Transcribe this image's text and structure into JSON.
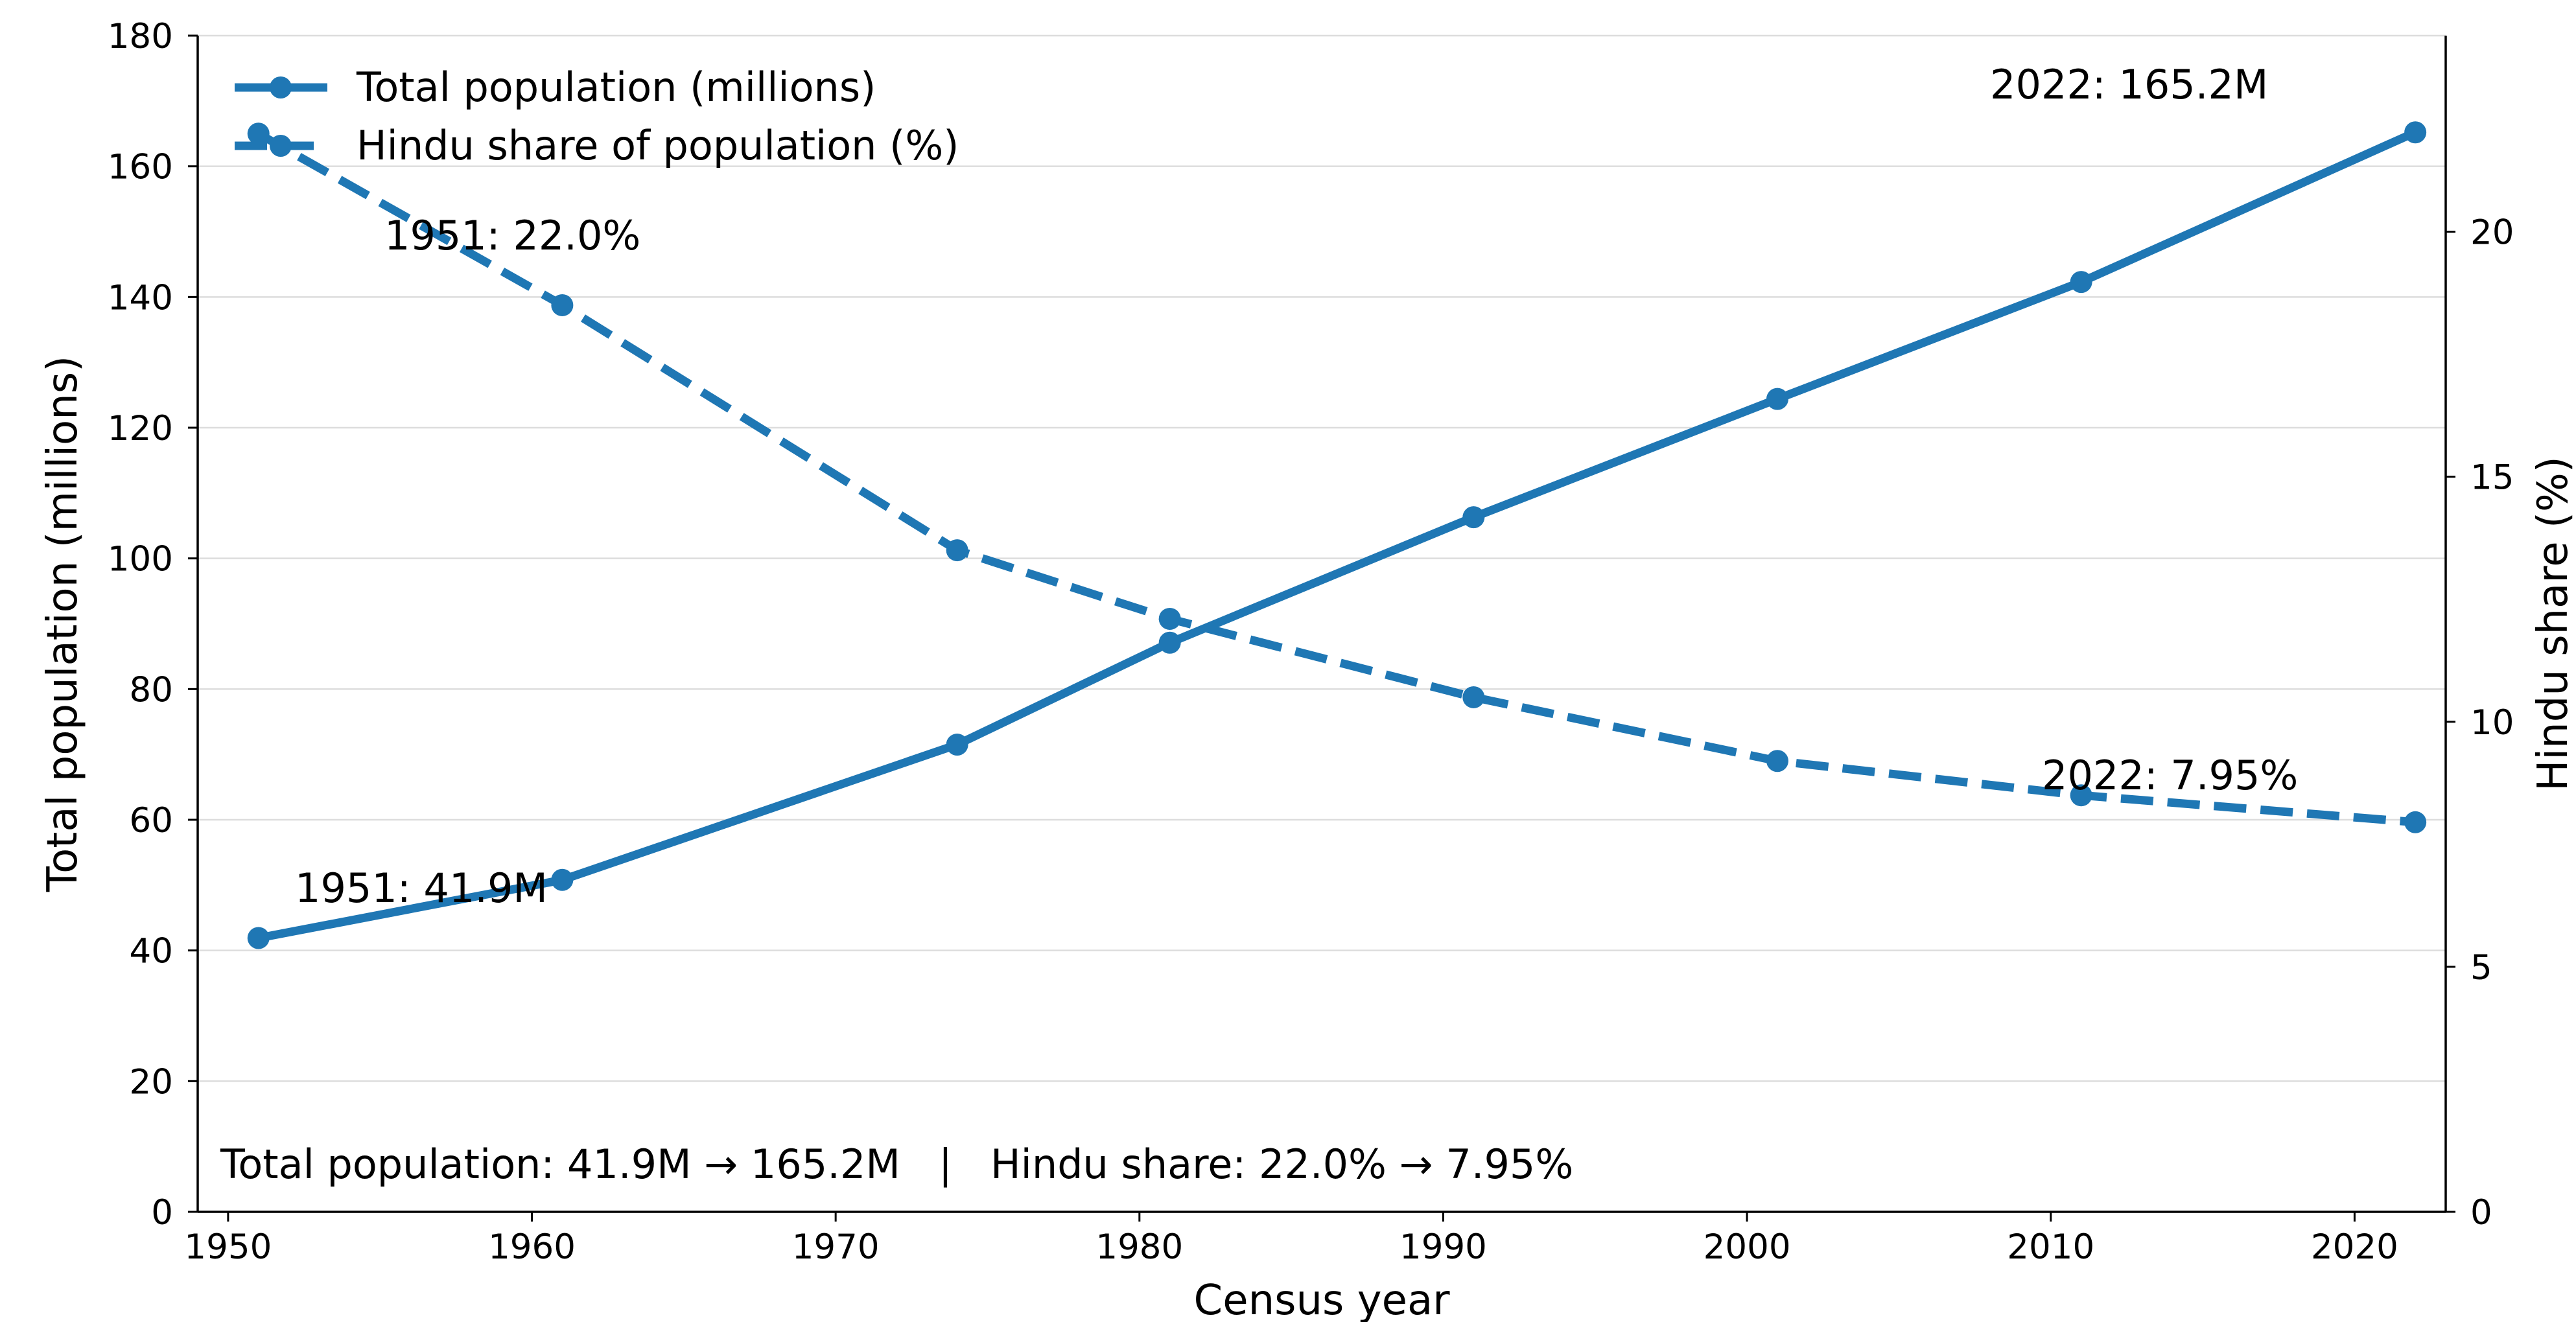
{
  "chart_data": {
    "type": "line",
    "xlabel": "Census year",
    "ylabel_left": "Total population (millions)",
    "ylabel_right": "Hindu share (%)",
    "xlim": [
      1949,
      2023
    ],
    "ylim_left": [
      0,
      180
    ],
    "ylim_right": [
      0,
      24
    ],
    "x_ticks": [
      "1950",
      "1960",
      "1970",
      "1980",
      "1990",
      "2000",
      "2010",
      "2020"
    ],
    "y_ticks_left": [
      "0",
      "20",
      "40",
      "60",
      "80",
      "100",
      "120",
      "140",
      "160",
      "180"
    ],
    "y_ticks_right": [
      "0",
      "5",
      "10",
      "15",
      "20"
    ],
    "grid": "horizontal",
    "legend_position": "top-left",
    "color": "#1f77b4",
    "x": [
      1951,
      1961,
      1974,
      1981,
      1991,
      2001,
      2011,
      2022
    ],
    "series": [
      {
        "name": "Total population (millions)",
        "axis": "left",
        "style": "solid",
        "values": [
          41.9,
          50.8,
          71.5,
          87.1,
          106.3,
          124.4,
          142.3,
          165.2
        ]
      },
      {
        "name": "Hindu share of population (%)",
        "axis": "right",
        "style": "dashed",
        "values": [
          22.0,
          18.5,
          13.5,
          12.1,
          10.5,
          9.2,
          8.5,
          7.95
        ]
      }
    ],
    "annotations": [
      {
        "text": "1951: 41.9M",
        "series": 0
      },
      {
        "text": "2022: 165.2M",
        "series": 0
      },
      {
        "text": "1951: 22.0%",
        "series": 1
      },
      {
        "text": "2022: 7.95%",
        "series": 1
      }
    ],
    "summary": "Total population: 41.9M → 165.2M   |   Hindu share: 22.0% → 7.95%"
  }
}
